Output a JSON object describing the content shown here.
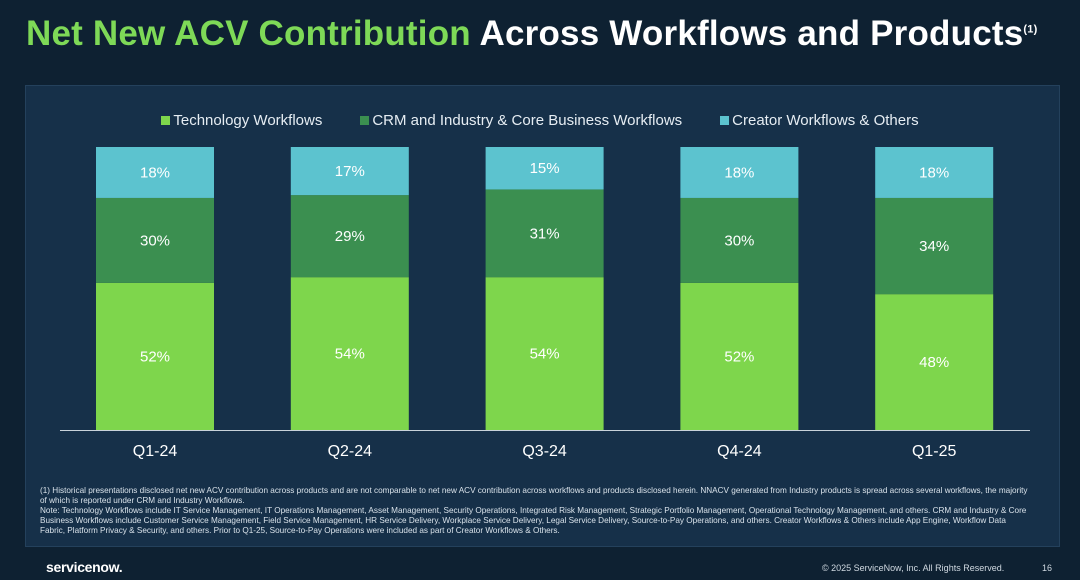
{
  "title": {
    "highlight": "Net New ACV Contribution",
    "rest": "Across Workflows and Products",
    "superscript": "(1)"
  },
  "chart_data": {
    "type": "bar",
    "stacked": true,
    "categories": [
      "Q1-24",
      "Q2-24",
      "Q3-24",
      "Q4-24",
      "Q1-25"
    ],
    "series": [
      {
        "name": "Technology Workflows",
        "color": "#7ed64c",
        "values": [
          52,
          54,
          54,
          52,
          48
        ]
      },
      {
        "name": "CRM and Industry & Core Business Workflows",
        "color": "#3b8f50",
        "values": [
          30,
          29,
          31,
          30,
          34
        ]
      },
      {
        "name": "Creator Workflows & Others",
        "color": "#5cc3cf",
        "values": [
          18,
          17,
          15,
          18,
          18
        ]
      }
    ],
    "value_suffix": "%",
    "ylim": [
      0,
      100
    ],
    "grid": false,
    "legend_position": "top"
  },
  "footnote": [
    "(1) Historical presentations disclosed net new ACV contribution across products and are not comparable to net new ACV contribution across workflows and products disclosed herein. NNACV generated from Industry products is spread across several workflows, the majority of which is reported under CRM and Industry Workflows.",
    "Note: Technology Workflows include IT Service Management, IT Operations Management, Asset Management, Security Operations, Integrated Risk Management, Strategic Portfolio Management, Operational Technology Management, and others. CRM and Industry & Core Business Workflows include Customer Service Management, Field Service Management, HR Service Delivery, Workplace Service Delivery, Legal Service Delivery, Source-to-Pay Operations, and others. Creator Workflows & Others include App Engine, Workflow Data Fabric, Platform Privacy & Security, and others. Prior to Q1-25, Source-to-Pay Operations were included as part of Creator Workflows & Others."
  ],
  "footer": {
    "logo": "servicenow.",
    "copyright": "© 2025 ServiceNow, Inc. All Rights Reserved.",
    "page": "16"
  }
}
